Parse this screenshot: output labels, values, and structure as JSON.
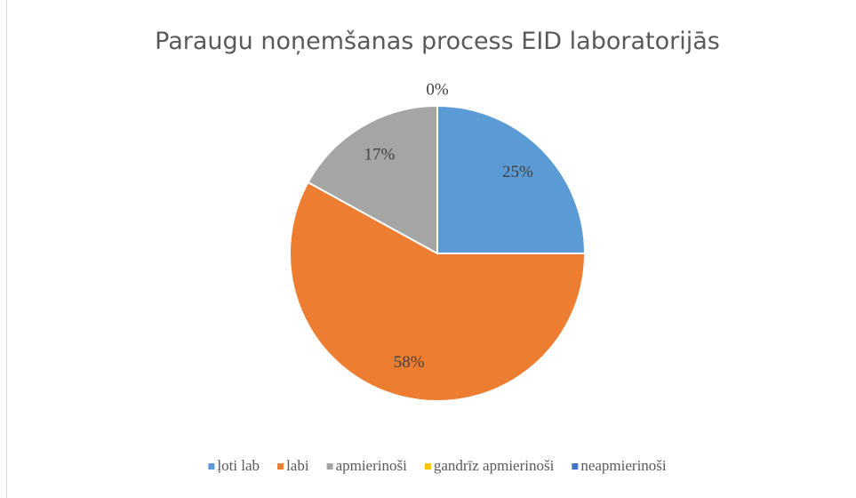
{
  "chart_data": {
    "type": "pie",
    "title": "Paraugu noņemšanas process EID laboratorijās",
    "categories": [
      "ļoti lab",
      "labi",
      "apmierinoši",
      "gandrīz apmierinoši",
      "neapmierinoši"
    ],
    "values": [
      25,
      58,
      17,
      0,
      0
    ],
    "value_labels": [
      "25%",
      "58%",
      "17%",
      "0%",
      null
    ],
    "colors": [
      "#5b9bd5",
      "#ed7d31",
      "#a5a5a5",
      "#ffc000",
      "#4472c4"
    ],
    "legend": "bottom"
  }
}
